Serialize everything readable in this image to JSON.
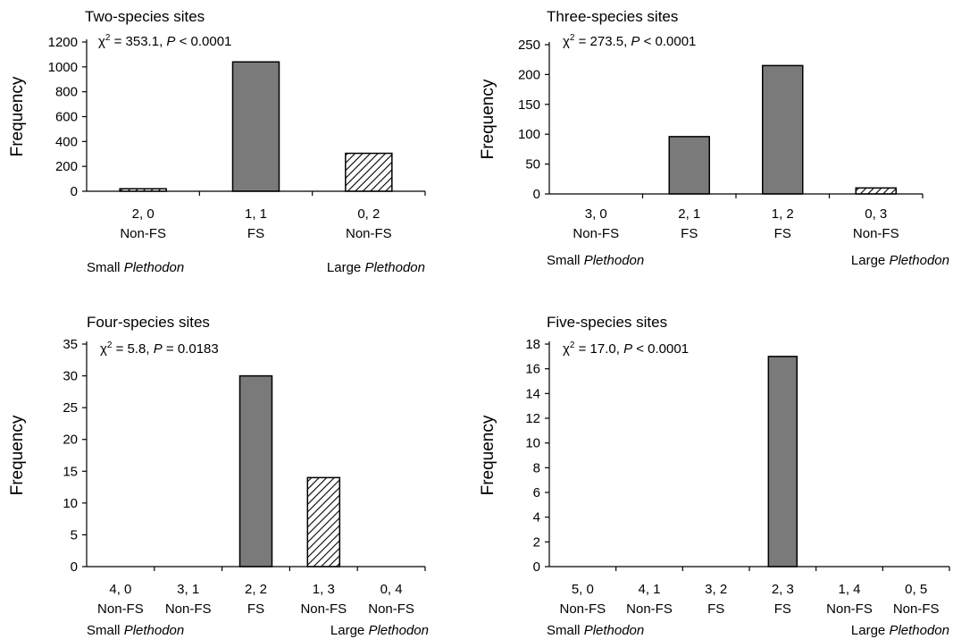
{
  "panel_stats": [
    {
      "chi": "χ",
      "sup": "2",
      "mid": " = 353.1, ",
      "p": "P",
      "rest": " < 0.0001"
    },
    {
      "chi": "χ",
      "sup": "2",
      "mid": " = 273.5, ",
      "p": "P",
      "rest": " < 0.0001"
    },
    {
      "chi": "χ",
      "sup": "2",
      "mid": " = 5.8, ",
      "p": "P",
      "rest": " = 0.0183"
    },
    {
      "chi": "χ",
      "sup": "2",
      "mid": " = 17.0, ",
      "p": "P",
      "rest": " < 0.0001"
    }
  ],
  "colors": {
    "fs_fill": "#7a7a7a",
    "hatch": "#000000",
    "axis": "#000000"
  },
  "chart_data": [
    {
      "type": "bar",
      "title": "Two-species sites",
      "ylabel": "Frequency",
      "ylim": [
        0,
        1200
      ],
      "yticks": [
        0,
        200,
        400,
        600,
        800,
        1000,
        1200
      ],
      "categories": [
        "2, 0",
        "1, 1",
        "0, 2"
      ],
      "category_types": [
        "Non-FS",
        "FS",
        "Non-FS"
      ],
      "values": [
        20,
        1040,
        305
      ],
      "bar_patterns": [
        "hatch",
        "solid",
        "hatch"
      ],
      "x_left_label": {
        "plain": "Small ",
        "italic": "Plethodon"
      },
      "x_right_label": {
        "plain": "Large ",
        "italic": "Plethodon"
      }
    },
    {
      "type": "bar",
      "title": "Three-species sites",
      "ylabel": "Frequency",
      "ylim": [
        0,
        250
      ],
      "yticks": [
        0,
        50,
        100,
        150,
        200,
        250
      ],
      "categories": [
        "3, 0",
        "2, 1",
        "1, 2",
        "0, 3"
      ],
      "category_types": [
        "Non-FS",
        "FS",
        "FS",
        "Non-FS"
      ],
      "values": [
        0,
        96,
        215,
        10
      ],
      "bar_patterns": [
        "hatch",
        "solid",
        "solid",
        "hatch"
      ],
      "x_left_label": {
        "plain": "Small ",
        "italic": "Plethodon"
      },
      "x_right_label": {
        "plain": "Large ",
        "italic": "Plethodon"
      }
    },
    {
      "type": "bar",
      "title": "Four-species sites",
      "ylabel": "Frequency",
      "ylim": [
        0,
        35
      ],
      "yticks": [
        0,
        5,
        10,
        15,
        20,
        25,
        30,
        35
      ],
      "categories": [
        "4, 0",
        "3, 1",
        "2, 2",
        "1, 3",
        "0, 4"
      ],
      "category_types": [
        "Non-FS",
        "Non-FS",
        "FS",
        "Non-FS",
        "Non-FS"
      ],
      "values": [
        0,
        0,
        30,
        14,
        0
      ],
      "bar_patterns": [
        "hatch",
        "hatch",
        "solid",
        "hatch",
        "hatch"
      ],
      "x_left_label": {
        "plain": "Small ",
        "italic": "Plethodon"
      },
      "x_right_label": {
        "plain": "Large ",
        "italic": "Plethodon"
      }
    },
    {
      "type": "bar",
      "title": "Five-species sites",
      "ylabel": "Frequency",
      "ylim": [
        0,
        18
      ],
      "yticks": [
        0,
        2,
        4,
        6,
        8,
        10,
        12,
        14,
        16,
        18
      ],
      "categories": [
        "5, 0",
        "4, 1",
        "3, 2",
        "2, 3",
        "1, 4",
        "0, 5"
      ],
      "category_types": [
        "Non-FS",
        "Non-FS",
        "FS",
        "FS",
        "Non-FS",
        "Non-FS"
      ],
      "values": [
        0,
        0,
        0,
        17,
        0,
        0
      ],
      "bar_patterns": [
        "hatch",
        "hatch",
        "solid",
        "solid",
        "hatch",
        "hatch"
      ],
      "x_left_label": {
        "plain": "Small ",
        "italic": "Plethodon"
      },
      "x_right_label": {
        "plain": "Large ",
        "italic": "Plethodon"
      }
    }
  ]
}
